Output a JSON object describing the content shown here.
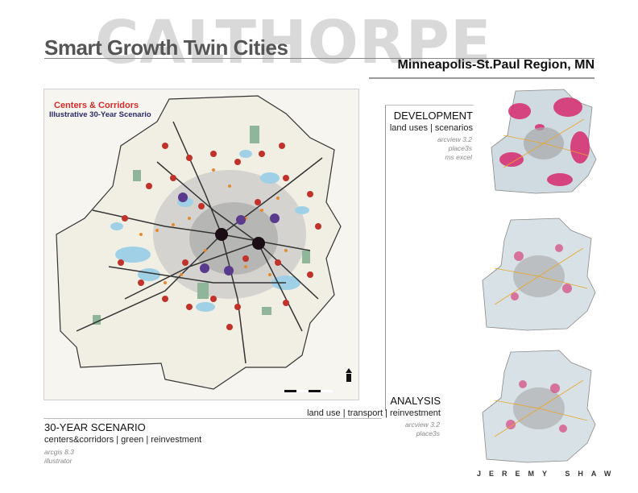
{
  "header": {
    "watermark": "CALTHORPE",
    "title": "Smart Growth Twin Cities",
    "subtitle": "Minneapolis-St.Paul Region, MN"
  },
  "main_map": {
    "title_line1": "Centers & Corridors",
    "title_line2": "Illustrative 30-Year Scenario"
  },
  "development": {
    "heading": "DEVELOPMENT",
    "subheading": "land uses | scenarios",
    "tools": [
      "arcview 3.2",
      "place3s",
      "ms excel"
    ]
  },
  "analysis": {
    "heading": "ANALYSIS",
    "subheading": "land use | transport | reinvestment",
    "tools": [
      "arcview 3.2",
      "place3s"
    ]
  },
  "scenario": {
    "heading": "30-YEAR SCENARIO",
    "subheading": "centers&corridors | green | reinvestment",
    "tools": [
      "arcgis 8.3",
      "illustrator"
    ]
  },
  "author": "JEREMY SHAW",
  "colors": {
    "watermark": "#d9d9d9",
    "title": "#555555",
    "center_red": "#c0322a",
    "center_purple": "#5a3a8c",
    "center_black": "#1a0d14",
    "corridor_orange": "#e8892a",
    "water": "#9fd0e6",
    "green": "#8fb59a",
    "urban_gray": "#b8b8b8",
    "development_magenta": "#d62a6e"
  }
}
